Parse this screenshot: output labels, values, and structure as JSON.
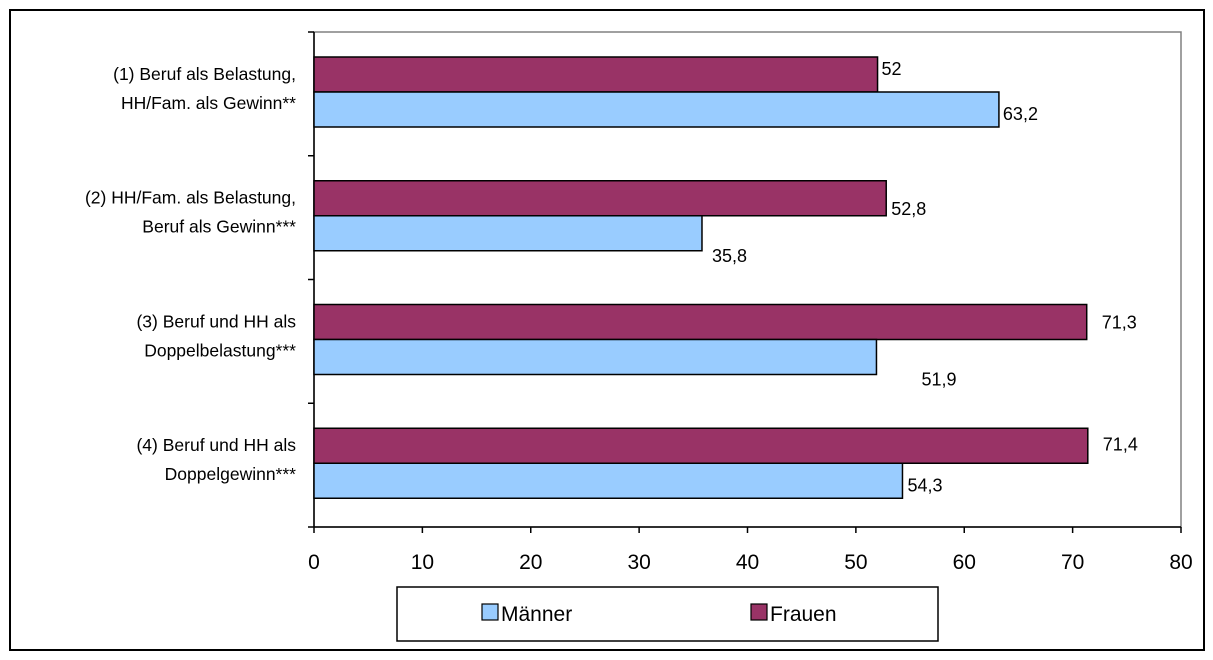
{
  "chart_data": {
    "type": "bar",
    "orientation": "horizontal",
    "categories": [
      [
        "(1) Beruf als Belastung,",
        "HH/Fam. als Gewinn**"
      ],
      [
        "(2) HH/Fam. als Belastung,",
        "Beruf als Gewinn***"
      ],
      [
        "(3) Beruf und HH als",
        "Doppelbelastung***"
      ],
      [
        "(4) Beruf und HH als",
        "Doppelgewinn***"
      ]
    ],
    "series": [
      {
        "name": "Männer",
        "color": "#99ccff",
        "values": [
          63.2,
          35.8,
          51.9,
          54.3
        ],
        "labels": [
          "63,2",
          "35,8",
          "51,9",
          "54,3"
        ]
      },
      {
        "name": "Frauen",
        "color": "#993366",
        "values": [
          52,
          52.8,
          71.3,
          71.4
        ],
        "labels": [
          "52",
          "52,8",
          "71,3",
          "71,4"
        ]
      }
    ],
    "xlim": [
      0,
      80
    ],
    "xticks": [
      "0",
      "10",
      "20",
      "30",
      "40",
      "50",
      "60",
      "70",
      "80"
    ],
    "title": "",
    "xlabel": "",
    "ylabel": "",
    "grid": false,
    "legend_position": "bottom"
  }
}
